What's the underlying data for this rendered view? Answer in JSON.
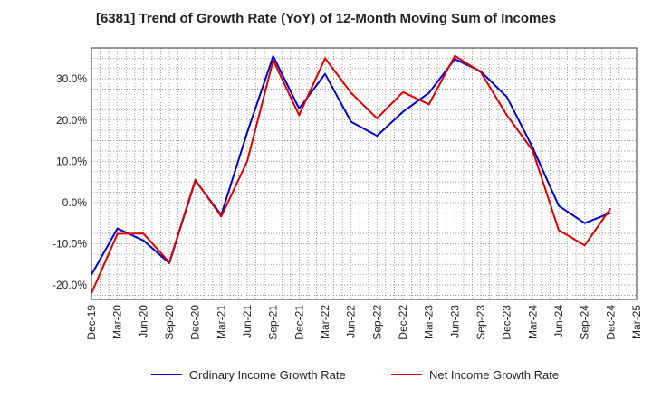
{
  "chart_data": {
    "type": "line",
    "title": "[6381]  Trend of Growth Rate (YoY) of 12-Month Moving Sum of Incomes",
    "xlabel": "",
    "ylabel": "",
    "x": [
      "Dec-19",
      "Mar-20",
      "Jun-20",
      "Sep-20",
      "Dec-20",
      "Mar-21",
      "Jun-21",
      "Sep-21",
      "Dec-21",
      "Mar-22",
      "Jun-22",
      "Sep-22",
      "Dec-22",
      "Mar-23",
      "Jun-23",
      "Sep-23",
      "Dec-23",
      "Mar-24",
      "Jun-24",
      "Sep-24",
      "Dec-24"
    ],
    "x_tick_labels": [
      "Dec-19",
      "Mar-20",
      "Jun-20",
      "Sep-20",
      "Dec-20",
      "Mar-21",
      "Jun-21",
      "Sep-21",
      "Dec-21",
      "Mar-22",
      "Jun-22",
      "Sep-22",
      "Dec-22",
      "Mar-23",
      "Jun-23",
      "Sep-23",
      "Dec-23",
      "Mar-24",
      "Jun-24",
      "Sep-24",
      "Dec-24",
      "Mar-25"
    ],
    "y_ticks": [
      -20,
      -10,
      0,
      10,
      20,
      30
    ],
    "y_tick_labels": [
      "-20.0%",
      "-10.0%",
      "0.0%",
      "10.0%",
      "20.0%",
      "30.0%"
    ],
    "ylim": [
      -23.5,
      37.5
    ],
    "grid": true,
    "legend_position": "bottom",
    "series": [
      {
        "name": "Ordinary Income Growth Rate",
        "color": "#0000cc",
        "values": [
          -17.5,
          -6.3,
          -9.2,
          -14.7,
          5.3,
          -3.0,
          17.0,
          35.5,
          22.8,
          31.2,
          19.6,
          16.2,
          22.0,
          26.6,
          34.8,
          31.8,
          25.6,
          13.3,
          -0.8,
          -5.0,
          -2.5
        ]
      },
      {
        "name": "Net Income Growth Rate",
        "color": "#dd0000",
        "values": [
          -22.0,
          -7.6,
          -7.5,
          -14.5,
          5.5,
          -3.4,
          10.0,
          34.5,
          21.2,
          35.0,
          26.6,
          20.4,
          26.8,
          23.8,
          35.6,
          31.6,
          21.2,
          12.6,
          -6.7,
          -10.4,
          -1.4
        ]
      }
    ]
  }
}
